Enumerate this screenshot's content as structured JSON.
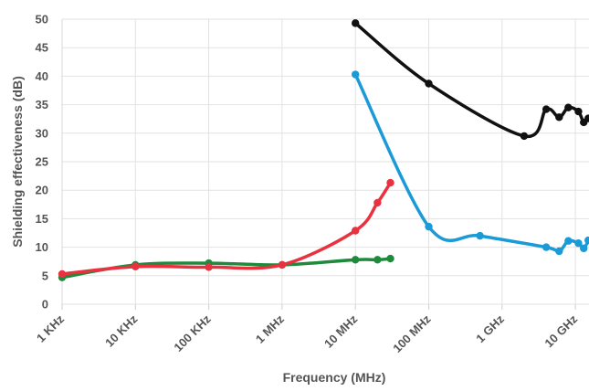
{
  "chart_data": {
    "type": "line",
    "title": "",
    "xlabel": "Frequency (MHz)",
    "ylabel": "Shielding effectiveness (dB)",
    "x_scale": "log",
    "xlim": [
      "1 KHz",
      "10 GHz"
    ],
    "ylim": [
      0,
      50
    ],
    "grid": true,
    "legend": "none",
    "x_tick_labels": [
      "1 KHz",
      "10 KHz",
      "100 KHz",
      "1 MHz",
      "10 MHz",
      "100 MHz",
      "1 GHz",
      "10 GHz"
    ],
    "y_tick_labels": [
      "0",
      "5",
      "10",
      "15",
      "20",
      "25",
      "30",
      "35",
      "40",
      "45",
      "50"
    ],
    "x_tick_values_mhz": [
      0.001,
      0.01,
      0.1,
      1,
      10,
      100,
      1000,
      10000
    ],
    "y_tick_values": [
      0,
      5,
      10,
      15,
      20,
      25,
      30,
      35,
      40,
      45,
      50
    ],
    "series": [
      {
        "color": "#1f8a3c",
        "x": [
          0.001,
          0.01,
          0.1,
          1,
          10,
          20,
          30
        ],
        "y": [
          4.7,
          6.9,
          7.2,
          6.9,
          7.8,
          7.8,
          8.0
        ]
      },
      {
        "color": "#e8323f",
        "x": [
          0.001,
          0.01,
          0.1,
          1,
          10,
          20,
          30
        ],
        "y": [
          5.3,
          6.6,
          6.5,
          6.9,
          12.9,
          17.8,
          21.3
        ]
      },
      {
        "color": "#1a9bd7",
        "x": [
          10,
          100,
          500,
          4000,
          6000,
          8000,
          11000,
          13000,
          15000
        ],
        "y": [
          40.3,
          13.6,
          12.0,
          10.0,
          9.3,
          11.1,
          10.7,
          9.8,
          11.2
        ]
      },
      {
        "color": "#111111",
        "x": [
          10,
          100,
          2000,
          4000,
          6000,
          8000,
          11000,
          13000,
          15000
        ],
        "y": [
          49.3,
          38.7,
          29.5,
          34.2,
          32.8,
          34.5,
          33.8,
          31.9,
          32.6
        ]
      }
    ]
  }
}
